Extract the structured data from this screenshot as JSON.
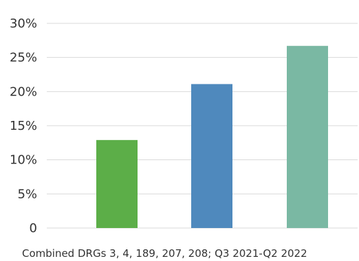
{
  "chart_data": {
    "type": "bar",
    "categories": [
      "",
      "",
      ""
    ],
    "values": [
      12.9,
      21.1,
      26.7
    ],
    "bar_colors": [
      "#5cae48",
      "#4f89bd",
      "#7ab8a3"
    ],
    "y_tick_labels": [
      "0",
      "5%",
      "10%",
      "15%",
      "20%",
      "25%",
      "30%"
    ],
    "y_ticks": [
      0,
      5,
      10,
      15,
      20,
      25,
      30
    ],
    "ylim": [
      0,
      30
    ],
    "grid": true,
    "xlabel": "Combined DRGs 3, 4, 189, 207, 208; Q3 2021-Q2 2022",
    "title": "",
    "ylabel": ""
  },
  "colors": {
    "gridline": "#d9d9d9",
    "axis_text": "#333333",
    "background": "#ffffff"
  }
}
